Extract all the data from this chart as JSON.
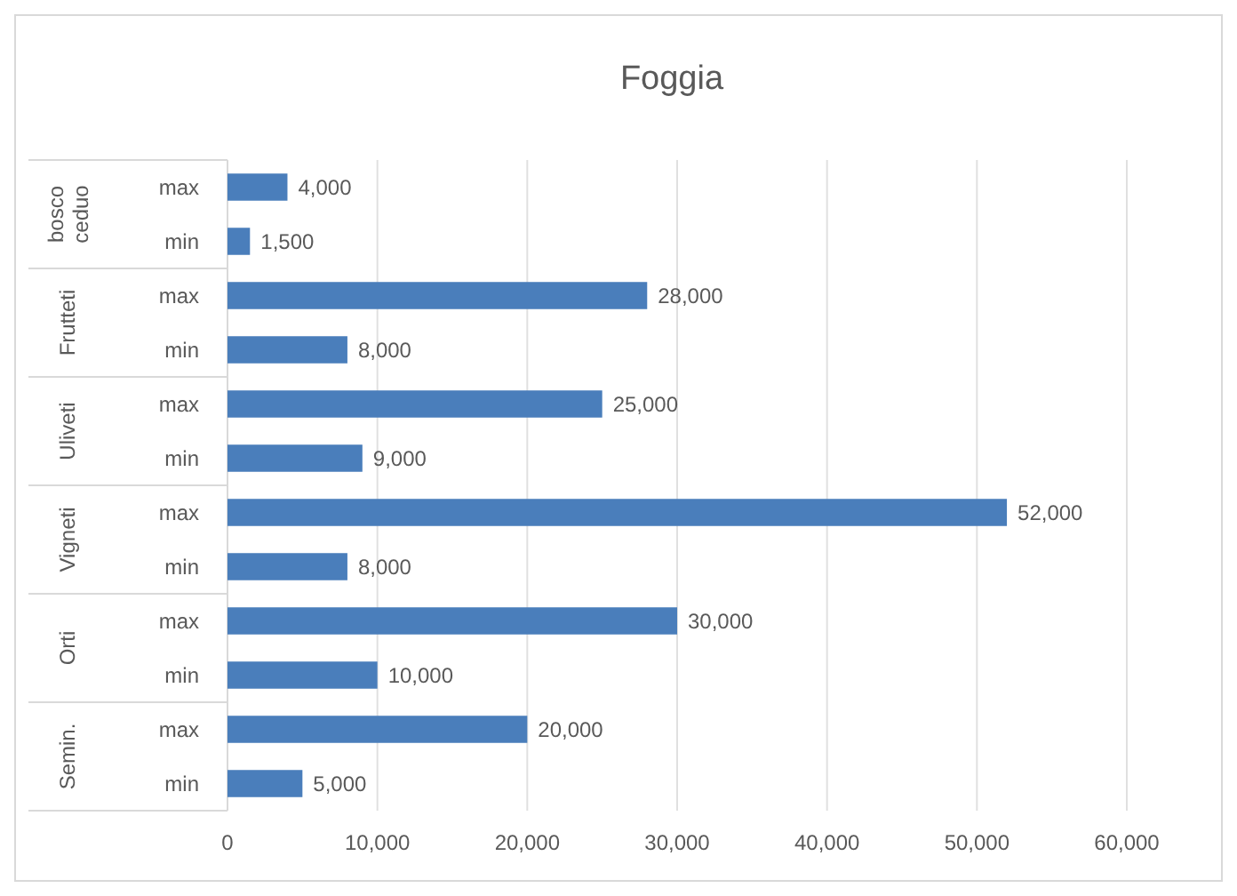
{
  "chart_data": {
    "type": "bar",
    "orientation": "horizontal",
    "title": "Foggia",
    "categories": [
      "max",
      "min",
      "max",
      "min",
      "max",
      "min",
      "max",
      "min",
      "max",
      "min",
      "max",
      "min"
    ],
    "values": [
      4000,
      1500,
      28000,
      8000,
      25000,
      9000,
      52000,
      8000,
      30000,
      10000,
      20000,
      5000
    ],
    "value_labels": [
      "4,000",
      "1,500",
      "28,000",
      "8,000",
      "25,000",
      "9,000",
      "52,000",
      "8,000",
      "30,000",
      "10,000",
      "20,000",
      "5,000"
    ],
    "color": "#4a7ebb",
    "annotations": [
      "bosco ceduo",
      "Frutteti",
      "Uliveti",
      "Vigneti",
      "Orti",
      "Semin."
    ],
    "xlim": [
      0,
      60000
    ],
    "xticks": [
      {
        "value": 0,
        "label": "0"
      },
      {
        "value": 10000,
        "label": "10,000"
      },
      {
        "value": 20000,
        "label": "20,000"
      },
      {
        "value": 30000,
        "label": "30,000"
      },
      {
        "value": 40000,
        "label": "40,000"
      },
      {
        "value": 50000,
        "label": "50,000"
      },
      {
        "value": 60000,
        "label": "60,000"
      }
    ],
    "grid": "x"
  }
}
